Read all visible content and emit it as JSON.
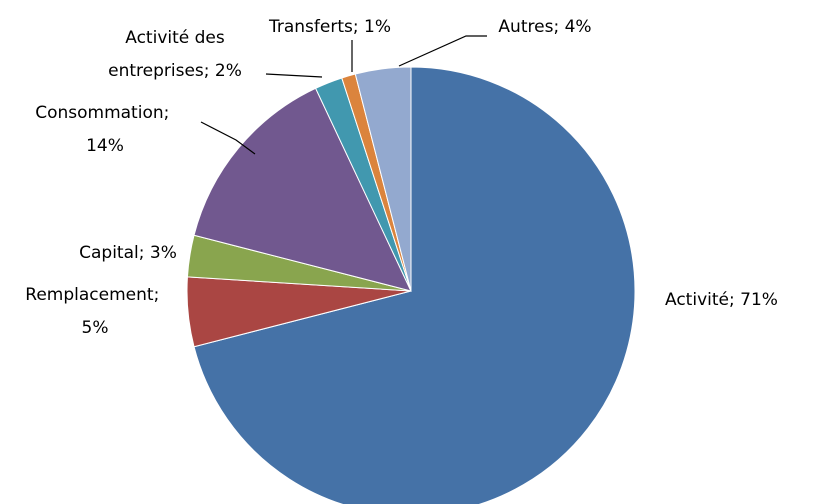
{
  "chart_data": {
    "type": "pie",
    "categories": [
      "Activité",
      "Remplacement",
      "Capital",
      "Consommation",
      "Activité des entreprises",
      "Transferts",
      "Autres"
    ],
    "values": [
      71,
      5,
      3,
      14,
      2,
      1,
      4
    ],
    "value_labels": [
      "71%",
      "5%",
      "3%",
      "14%",
      "2%",
      "1%",
      "4%"
    ],
    "label_separator": "; ",
    "colors": [
      "#4572a7",
      "#aa4643",
      "#89a54e",
      "#71588f",
      "#4198af",
      "#db843d",
      "#93a9cf"
    ]
  }
}
